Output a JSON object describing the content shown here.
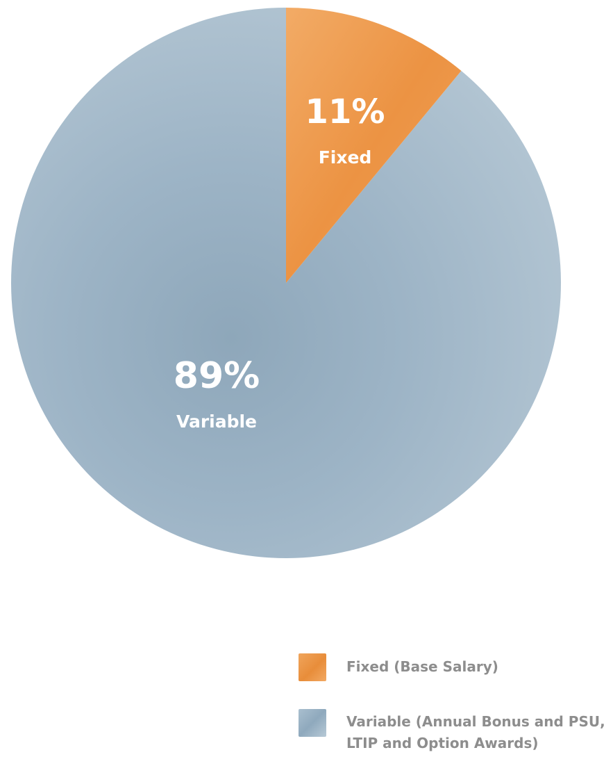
{
  "chart_data": {
    "type": "pie",
    "title": "",
    "slices": [
      {
        "label": "Fixed",
        "value": 11,
        "display": "11%",
        "color": "#EE9A4D"
      },
      {
        "label": "Variable",
        "value": 89,
        "display": "89%",
        "color": "#9DB5C7"
      }
    ],
    "legend": {
      "placement": "bottom-right",
      "items": [
        {
          "label": "Fixed (Base Salary)",
          "color": "#EE9A4D"
        },
        {
          "label": "Variable (Annual Bonus and PSU,\nLTIP and Option Awards)",
          "color": "#9DB5C7"
        }
      ]
    }
  }
}
